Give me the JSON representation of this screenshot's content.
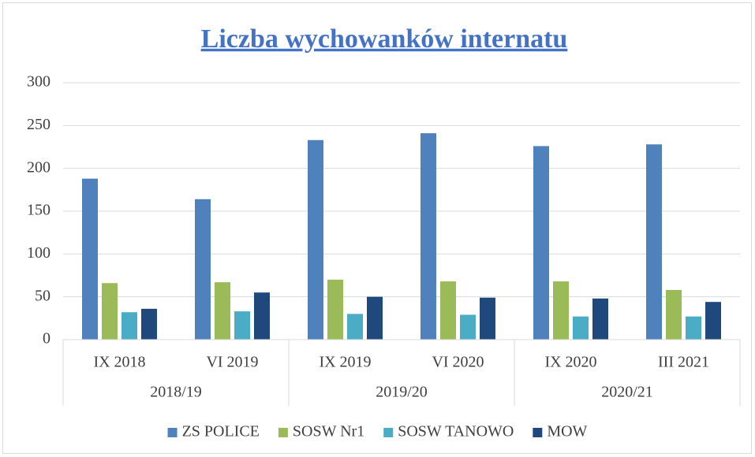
{
  "chart_data": {
    "type": "bar",
    "title": "Liczba wychowanków internatu",
    "groups": [
      {
        "name": "2018/19",
        "categories": [
          "IX 2018",
          "VI 2019"
        ]
      },
      {
        "name": "2019/20",
        "categories": [
          "IX 2019",
          "VI 2020"
        ]
      },
      {
        "name": "2020/21",
        "categories": [
          "IX 2020",
          "III 2021"
        ]
      }
    ],
    "series": [
      {
        "name": "ZS POLICE",
        "color": "#4f81bd",
        "values": [
          188,
          164,
          233,
          241,
          226,
          228
        ]
      },
      {
        "name": "SOSW Nr1",
        "color": "#9bbb59",
        "values": [
          66,
          67,
          70,
          68,
          68,
          58
        ]
      },
      {
        "name": "SOSW TANOWO",
        "color": "#4bacc6",
        "values": [
          32,
          33,
          30,
          29,
          27,
          27
        ]
      },
      {
        "name": "MOW",
        "color": "#1f497d",
        "values": [
          36,
          55,
          50,
          49,
          48,
          44
        ]
      }
    ],
    "ylim": [
      0,
      300
    ],
    "yticks": [
      0,
      50,
      100,
      150,
      200,
      250,
      300
    ],
    "grid": true,
    "legend": "bottom"
  }
}
